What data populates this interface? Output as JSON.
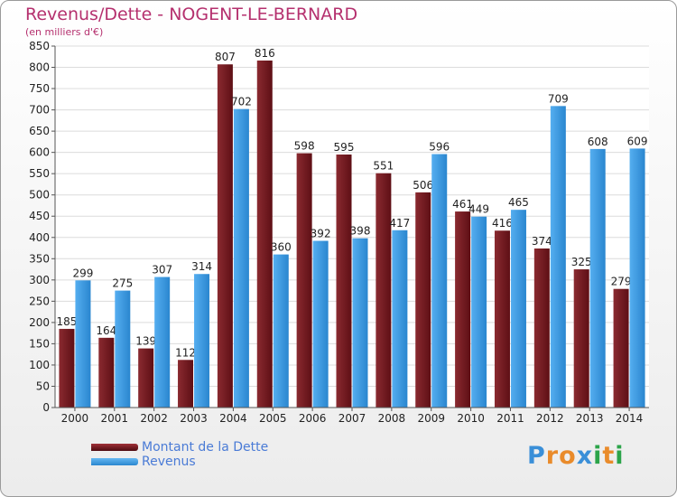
{
  "chart_data": {
    "type": "bar",
    "title": "Revenus/Dette - NOGENT-LE-BERNARD",
    "subtitle": "(en milliers d'€)",
    "categories": [
      "2000",
      "2001",
      "2002",
      "2003",
      "2004",
      "2005",
      "2006",
      "2007",
      "2008",
      "2009",
      "2010",
      "2011",
      "2012",
      "2013",
      "2014"
    ],
    "series": [
      {
        "name": "Montant de la Dette",
        "color": "#7a1c22",
        "values": [
          185,
          164,
          139,
          112,
          807,
          816,
          598,
          595,
          551,
          506,
          461,
          416,
          374,
          325,
          279
        ]
      },
      {
        "name": "Revenus",
        "color": "#3a9be3",
        "values": [
          299,
          275,
          307,
          314,
          702,
          360,
          392,
          398,
          417,
          596,
          449,
          465,
          709,
          608,
          609
        ]
      }
    ],
    "ylim": [
      0,
      850
    ],
    "yticks": [
      0,
      50,
      100,
      150,
      200,
      250,
      300,
      350,
      400,
      450,
      500,
      550,
      600,
      650,
      700,
      750,
      800,
      850
    ],
    "grid": true,
    "legend_position": "bottom-left"
  },
  "logo": {
    "text": "Proxiti",
    "letters": [
      "P",
      "r",
      "o",
      "x",
      "i",
      "t",
      "i"
    ],
    "colors": [
      "#3a8fd8",
      "#e98b2b",
      "#e98b2b",
      "#3a8fd8",
      "#2ca44a",
      "#e98b2b",
      "#2ca44a"
    ]
  }
}
